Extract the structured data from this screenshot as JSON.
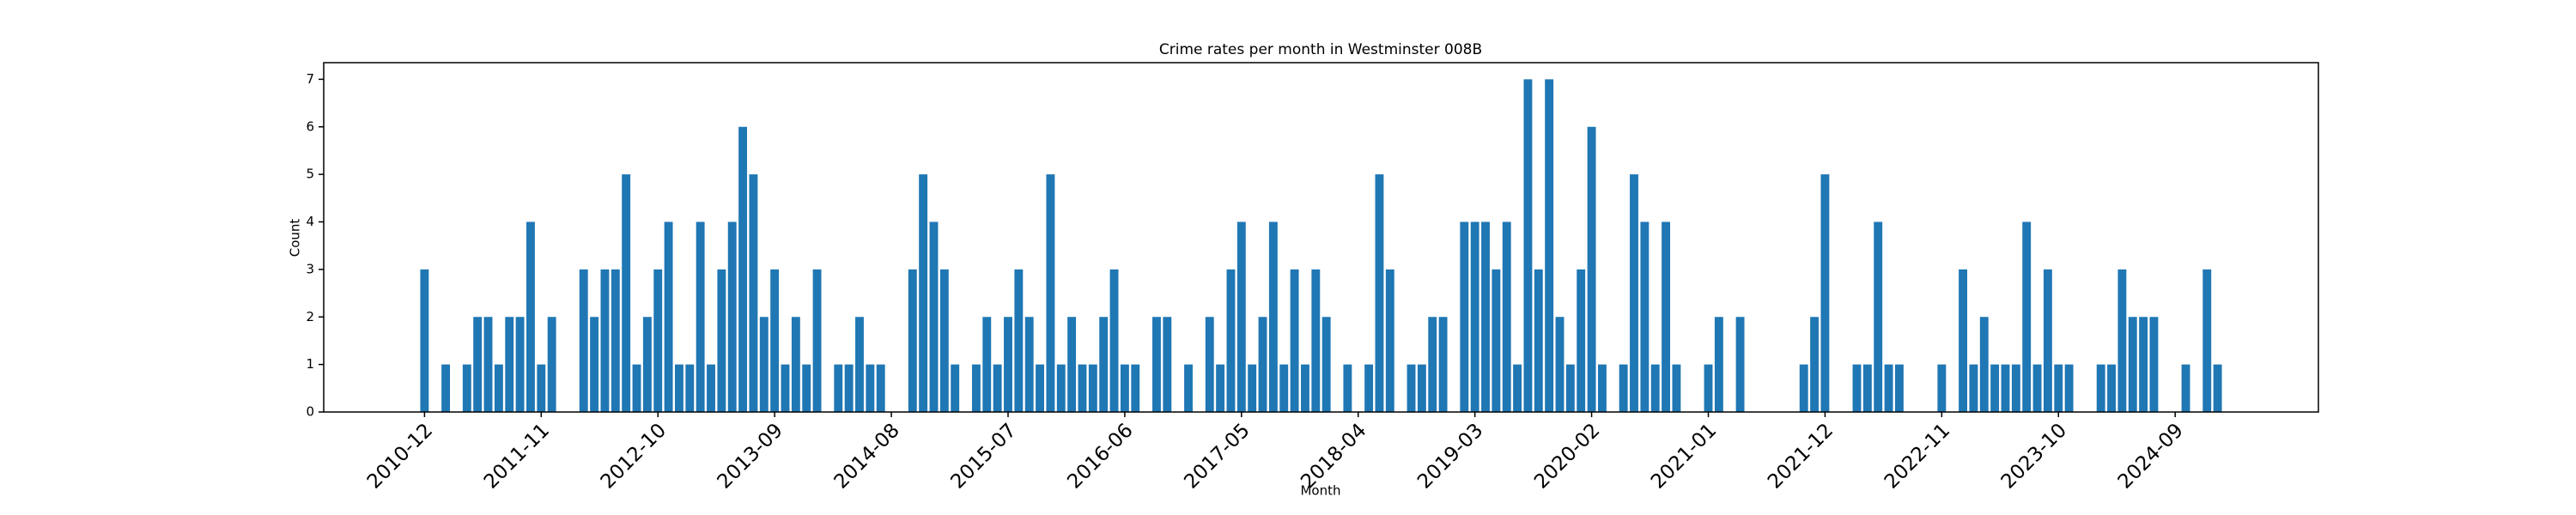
{
  "chart_data": {
    "type": "bar",
    "title": "Crime rates per month in Westminster 008B",
    "x_label": "Month",
    "y_label": "Count",
    "color": "#1f77b4",
    "categories": [
      "2010-12",
      null,
      null,
      null,
      null,
      null,
      null,
      null,
      null,
      null,
      null,
      "2011-11",
      null,
      null,
      null,
      null,
      null,
      null,
      null,
      null,
      null,
      null,
      "2012-10",
      null,
      null,
      null,
      null,
      null,
      null,
      null,
      null,
      null,
      null,
      "2013-09",
      null,
      null,
      null,
      null,
      null,
      null,
      null,
      null,
      null,
      null,
      "2014-08",
      null,
      null,
      null,
      null,
      null,
      null,
      null,
      null,
      null,
      null,
      "2015-07",
      null,
      null,
      null,
      null,
      null,
      null,
      null,
      null,
      null,
      null,
      "2016-06",
      null,
      null,
      null,
      null,
      null,
      null,
      null,
      null,
      null,
      null,
      "2017-05",
      null,
      null,
      null,
      null,
      null,
      null,
      null,
      null,
      null,
      null,
      "2018-04",
      null,
      null,
      null,
      null,
      null,
      null,
      null,
      null,
      null,
      null,
      "2019-03",
      null,
      null,
      null,
      null,
      null,
      null,
      null,
      null,
      null,
      null,
      "2020-02",
      null,
      null,
      null,
      null,
      null,
      null,
      null,
      null,
      null,
      null,
      "2021-01",
      null,
      null,
      null,
      null,
      null,
      null,
      null,
      null,
      null,
      null,
      "2021-12",
      null,
      null,
      null,
      null,
      null,
      null,
      null,
      null,
      null,
      null,
      "2022-11",
      null,
      null,
      null,
      null,
      null,
      null,
      null,
      null,
      null,
      null,
      "2023-10",
      null,
      null,
      null,
      null,
      null,
      null,
      null,
      null,
      null,
      null,
      "2024-09",
      null,
      null,
      null,
      null
    ],
    "values": [
      3,
      0,
      1,
      0,
      1,
      2,
      2,
      1,
      2,
      2,
      4,
      1,
      2,
      0,
      0,
      3,
      2,
      3,
      3,
      5,
      1,
      2,
      3,
      4,
      1,
      1,
      4,
      1,
      3,
      4,
      6,
      5,
      2,
      3,
      1,
      2,
      1,
      3,
      0,
      1,
      1,
      2,
      1,
      1,
      0,
      0,
      3,
      5,
      4,
      3,
      1,
      0,
      1,
      2,
      1,
      2,
      3,
      2,
      1,
      5,
      1,
      2,
      1,
      1,
      2,
      3,
      1,
      1,
      0,
      2,
      2,
      0,
      1,
      0,
      2,
      1,
      3,
      4,
      1,
      2,
      4,
      1,
      3,
      1,
      3,
      2,
      0,
      1,
      0,
      1,
      5,
      3,
      0,
      1,
      1,
      2,
      2,
      0,
      4,
      4,
      4,
      3,
      4,
      1,
      7,
      3,
      7,
      2,
      1,
      3,
      6,
      1,
      0,
      1,
      5,
      4,
      1,
      4,
      1,
      0,
      0,
      1,
      2,
      0,
      2,
      0,
      0,
      0,
      0,
      0,
      1,
      2,
      5,
      0,
      0,
      1,
      1,
      4,
      1,
      1,
      0,
      0,
      0,
      1,
      0,
      3,
      1,
      2,
      1,
      1,
      1,
      4,
      1,
      3,
      1,
      1,
      0,
      0,
      1,
      1,
      3,
      2,
      2,
      2,
      0,
      0,
      1,
      0,
      3,
      1
    ],
    "ylim": [
      0,
      7.35
    ],
    "yticks": [
      0,
      1,
      2,
      3,
      4,
      5,
      6,
      7
    ]
  }
}
